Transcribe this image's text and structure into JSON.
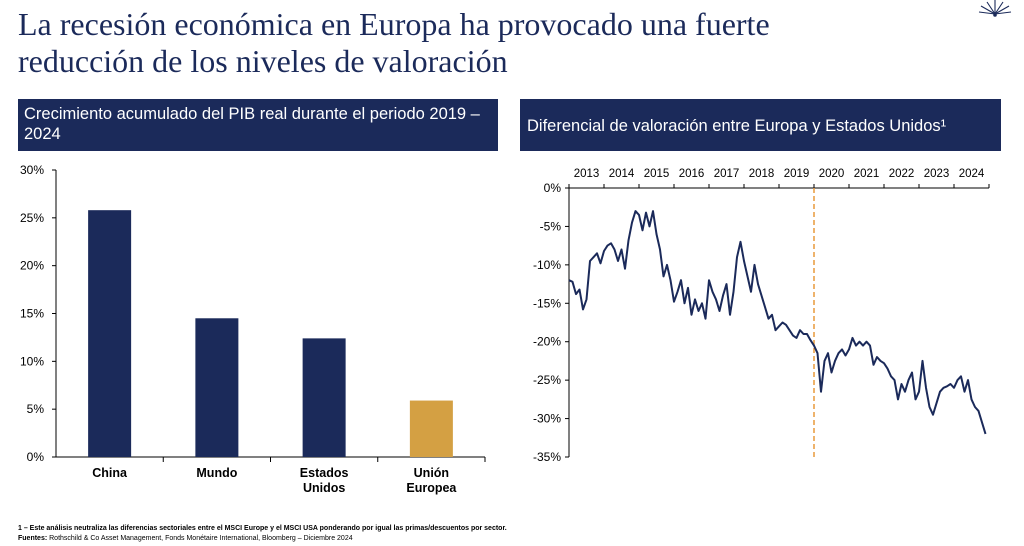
{
  "slide": {
    "title": "La recesión económica en Europa ha provocado una fuerte reducción de los niveles de valoración"
  },
  "chart_data": [
    {
      "type": "bar",
      "title": "Crecimiento acumulado del PIB real durante el periodo 2019 – 2024",
      "categories": [
        [
          "China"
        ],
        [
          "Mundo"
        ],
        [
          "Estados",
          "Unidos"
        ],
        [
          "Unión",
          "Europea"
        ]
      ],
      "values": [
        25.8,
        14.5,
        12.4,
        5.9
      ],
      "colors": [
        "#1b2a5a",
        "#1b2a5a",
        "#1b2a5a",
        "#d4a043"
      ],
      "yticks": [
        "0%",
        "5%",
        "10%",
        "15%",
        "20%",
        "25%",
        "30%"
      ],
      "ylim": [
        0,
        30
      ],
      "grid": false
    },
    {
      "type": "line",
      "title": "Diferencial de valoración entre Europa y Estados Unidos¹",
      "xticks": [
        "2013",
        "2014",
        "2015",
        "2016",
        "2017",
        "2018",
        "2019",
        "2020",
        "2021",
        "2022",
        "2023",
        "2024"
      ],
      "yticks": [
        "0%",
        "-5%",
        "-10%",
        "-15%",
        "-20%",
        "-25%",
        "-30%",
        "-35%"
      ],
      "ylim": [
        -35,
        0
      ],
      "xlim": [
        2013,
        2025
      ],
      "reference_line_x": 2020.0,
      "grid": false,
      "line_color": "#1b2a5a",
      "reference_color": "#e89a3c",
      "series": [
        {
          "x": [
            2013.0,
            2013.1,
            2013.2,
            2013.3,
            2013.4,
            2013.5,
            2013.6,
            2013.7,
            2013.8,
            2013.9,
            2014.0,
            2014.1,
            2014.2,
            2014.3,
            2014.4,
            2014.5,
            2014.6,
            2014.7,
            2014.8,
            2014.9,
            2015.0,
            2015.1,
            2015.2,
            2015.3,
            2015.4,
            2015.5,
            2015.6,
            2015.7,
            2015.8,
            2015.9,
            2016.0,
            2016.1,
            2016.2,
            2016.3,
            2016.4,
            2016.5,
            2016.6,
            2016.7,
            2016.8,
            2016.9,
            2017.0,
            2017.1,
            2017.2,
            2017.3,
            2017.4,
            2017.5,
            2017.6,
            2017.7,
            2017.8,
            2017.9,
            2018.0,
            2018.1,
            2018.2,
            2018.3,
            2018.4,
            2018.5,
            2018.6,
            2018.7,
            2018.8,
            2018.9,
            2019.0,
            2019.1,
            2019.2,
            2019.3,
            2019.4,
            2019.5,
            2019.6,
            2019.7,
            2019.8,
            2019.9,
            2020.0,
            2020.1,
            2020.2,
            2020.3,
            2020.4,
            2020.5,
            2020.6,
            2020.7,
            2020.8,
            2020.9,
            2021.0,
            2021.1,
            2021.2,
            2021.3,
            2021.4,
            2021.5,
            2021.6,
            2021.7,
            2021.8,
            2021.9,
            2022.0,
            2022.1,
            2022.2,
            2022.3,
            2022.4,
            2022.5,
            2022.6,
            2022.7,
            2022.8,
            2022.9,
            2023.0,
            2023.1,
            2023.2,
            2023.3,
            2023.4,
            2023.5,
            2023.6,
            2023.7,
            2023.8,
            2023.9,
            2024.0,
            2024.1,
            2024.2,
            2024.3,
            2024.4,
            2024.5,
            2024.6,
            2024.7,
            2024.8,
            2024.9
          ],
          "values": [
            -12.0,
            -12.2,
            -13.8,
            -13.2,
            -15.8,
            -14.5,
            -9.5,
            -9.0,
            -8.5,
            -9.8,
            -8.2,
            -7.5,
            -7.2,
            -8.0,
            -9.5,
            -8.0,
            -10.5,
            -6.8,
            -4.5,
            -3.0,
            -3.5,
            -5.5,
            -3.2,
            -5.0,
            -3.0,
            -6.0,
            -8.0,
            -11.5,
            -10.0,
            -12.0,
            -14.8,
            -13.5,
            -12.0,
            -15.0,
            -13.0,
            -16.5,
            -14.5,
            -16.0,
            -15.0,
            -17.0,
            -12.0,
            -13.5,
            -14.5,
            -16.0,
            -14.0,
            -12.5,
            -16.5,
            -13.5,
            -9.0,
            -7.0,
            -9.5,
            -11.5,
            -13.5,
            -10.0,
            -12.5,
            -14.0,
            -15.5,
            -17.0,
            -16.5,
            -18.5,
            -18.0,
            -17.5,
            -17.8,
            -18.5,
            -19.2,
            -19.5,
            -18.5,
            -19.0,
            -19.0,
            -19.8,
            -20.5,
            -21.5,
            -26.5,
            -22.5,
            -21.5,
            -24.0,
            -22.5,
            -21.5,
            -21.0,
            -21.8,
            -21.0,
            -19.5,
            -20.5,
            -20.0,
            -20.5,
            -20.0,
            -20.5,
            -23.0,
            -22.0,
            -22.5,
            -22.8,
            -23.5,
            -24.5,
            -25.0,
            -27.5,
            -25.5,
            -26.5,
            -25.0,
            -24.0,
            -27.5,
            -26.5,
            -22.5,
            -26.0,
            -28.5,
            -29.5,
            -28.0,
            -26.5,
            -26.0,
            -25.8,
            -25.5,
            -26.0,
            -25.0,
            -24.5,
            -26.5,
            -25.0,
            -27.5,
            -28.5,
            -29.0,
            -30.5,
            -32.0
          ]
        }
      ]
    }
  ],
  "footnotes": {
    "note1": "1 – Este análisis neutraliza las diferencias sectoriales entre el MSCI Europe y el MSCI USA ponderando por igual las primas/descuentos por sector.",
    "sources_label": "Fuentes:",
    "sources_text": " Rothschild & Co Asset Management, Fonds Monétaire International, Bloomberg – Diciembre 2024"
  }
}
